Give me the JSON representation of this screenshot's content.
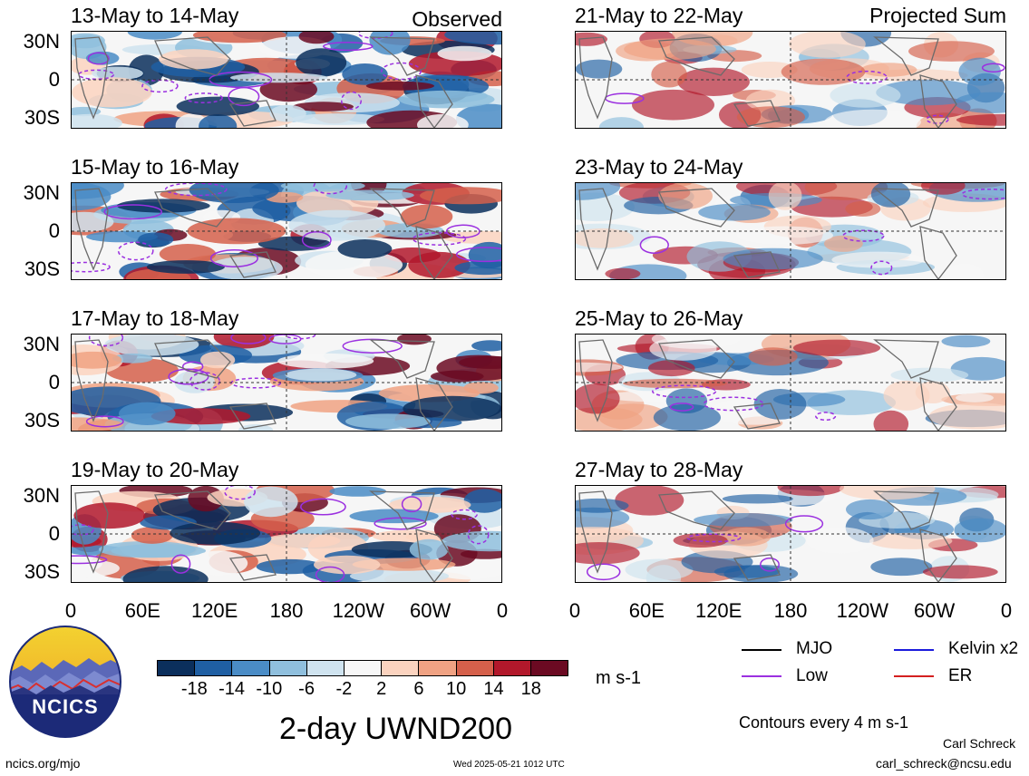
{
  "panels_left": {
    "header_right": "Observed",
    "titles": [
      "13-May to 14-May",
      "15-May to 16-May",
      "17-May to 18-May",
      "19-May to 20-May"
    ]
  },
  "panels_right": {
    "header_right": "Projected Sum",
    "titles": [
      "21-May to 22-May",
      "23-May to 24-May",
      "25-May to 26-May",
      "27-May to 28-May"
    ]
  },
  "lat_labels": [
    "30N",
    "0",
    "30S"
  ],
  "lon_labels": [
    "0",
    "60E",
    "120E",
    "180",
    "120W",
    "60W",
    "0"
  ],
  "colorbar": {
    "labels": [
      "-18",
      "-14",
      "-10",
      "-6",
      "-2",
      "2",
      "6",
      "10",
      "14",
      "18"
    ],
    "colors": [
      "#0b2f5c",
      "#1f5fa3",
      "#4a8cc6",
      "#8fbfdd",
      "#cfe3ef",
      "#f7f7f7",
      "#fbd3bf",
      "#f0a283",
      "#d5604b",
      "#b2182b",
      "#6b0a22"
    ],
    "units": "m s-1"
  },
  "main_title": "2-day UWND200",
  "legend": {
    "items": [
      {
        "label": "MJO",
        "color": "#000000"
      },
      {
        "label": "Kelvin x2",
        "color": "#1b1bdc"
      },
      {
        "label": "Low",
        "color": "#9b30e0"
      },
      {
        "label": "ER",
        "color": "#d42020"
      }
    ],
    "contour_note": "Contours every 4 m s-1"
  },
  "logo": {
    "text": "NCICS"
  },
  "footer": {
    "url": "ncics.org/mjo",
    "timestamp": "Wed 2025-05-21 1012 UTC",
    "author": "Carl Schreck",
    "email": "carl_schreck@ncsu.edu"
  }
}
